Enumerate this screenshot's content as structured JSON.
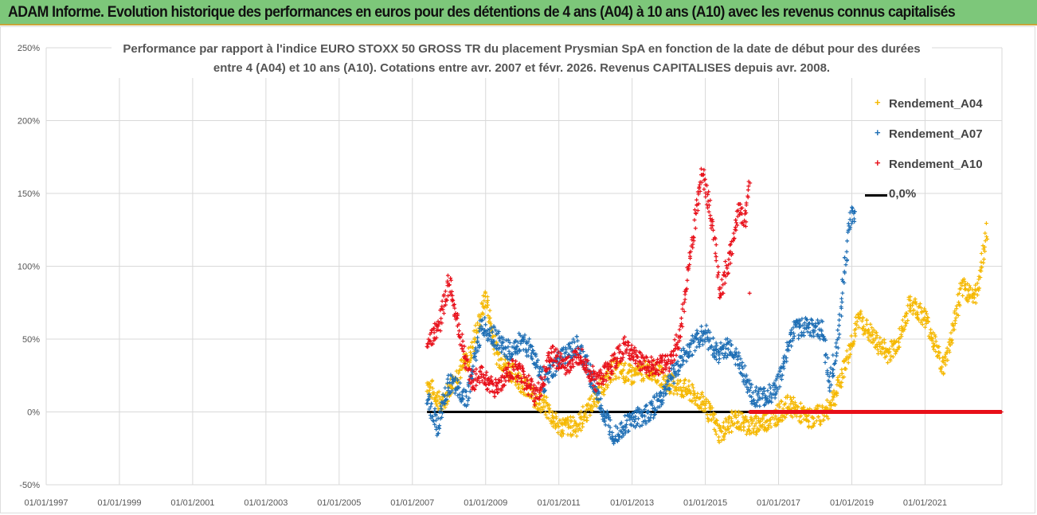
{
  "banner": "ADAM Informe. Evolution historique des performances en euros pour des détentions de 4 ans (A04) à 10 ans (A10) avec les revenus connus capitalisés",
  "colors": {
    "A04": "#f5b800",
    "A07": "#1f6fb5",
    "A10": "#e8101a",
    "zero": "#000000"
  },
  "chart_data": {
    "type": "scatter",
    "title": "Performance par rapport à l'indice EURO STOXX 50 GROSS TR  du placement Prysmian SpA en fonction de la date de début pour des durées",
    "title_line2": "entre 4 (A04) et 10 ans (A10). Cotations entre avr. 2007 et févr. 2026. Revenus CAPITALISES depuis avr. 2008.",
    "xlabel": "",
    "ylabel": "",
    "xlim": [
      1997,
      2023.1
    ],
    "ylim": [
      -50,
      250
    ],
    "y_ticks": [
      "-50%",
      "0%",
      "50%",
      "100%",
      "150%",
      "200%",
      "250%"
    ],
    "y_tick_values": [
      -50,
      0,
      50,
      100,
      150,
      200,
      250
    ],
    "x_ticks": [
      "01/01/1997",
      "01/01/1999",
      "01/01/2001",
      "01/01/2003",
      "01/01/2005",
      "01/01/2007",
      "01/01/2009",
      "01/01/2011",
      "01/01/2013",
      "01/01/2015",
      "01/01/2017",
      "01/01/2019",
      "01/01/2021"
    ],
    "x_tick_values": [
      1997,
      1999,
      2001,
      2003,
      2005,
      2007,
      2009,
      2011,
      2013,
      2015,
      2017,
      2019,
      2021
    ],
    "grid": "vertical and horizontal",
    "legend_position": "top-right",
    "series": [
      {
        "name": "Rendement_A04",
        "key": "A04",
        "points": [
          [
            2007.4,
            20
          ],
          [
            2007.8,
            5
          ],
          [
            2008.2,
            25
          ],
          [
            2008.6,
            40
          ],
          [
            2009.0,
            80
          ],
          [
            2009.3,
            40
          ],
          [
            2009.6,
            30
          ],
          [
            2010.0,
            20
          ],
          [
            2010.3,
            10
          ],
          [
            2010.6,
            5
          ],
          [
            2011.0,
            -10
          ],
          [
            2011.5,
            -10
          ],
          [
            2012.0,
            10
          ],
          [
            2012.5,
            30
          ],
          [
            2013.0,
            25
          ],
          [
            2013.5,
            30
          ],
          [
            2014.0,
            20
          ],
          [
            2014.5,
            15
          ],
          [
            2015.0,
            5
          ],
          [
            2015.4,
            -15
          ],
          [
            2015.8,
            -5
          ],
          [
            2016.3,
            -10
          ],
          [
            2016.8,
            -5
          ],
          [
            2017.3,
            5
          ],
          [
            2017.8,
            -5
          ],
          [
            2018.3,
            0
          ],
          [
            2018.6,
            15
          ],
          [
            2018.9,
            40
          ],
          [
            2019.2,
            65
          ],
          [
            2019.6,
            50
          ],
          [
            2020.0,
            40
          ],
          [
            2020.3,
            50
          ],
          [
            2020.6,
            75
          ],
          [
            2021.0,
            65
          ],
          [
            2021.3,
            45
          ],
          [
            2021.5,
            30
          ],
          [
            2021.7,
            50
          ],
          [
            2022.0,
            85
          ],
          [
            2022.4,
            80
          ],
          [
            2022.7,
            125
          ]
        ]
      },
      {
        "name": "Rendement_A07",
        "key": "A07",
        "points": [
          [
            2007.4,
            10
          ],
          [
            2007.7,
            -10
          ],
          [
            2008.0,
            20
          ],
          [
            2008.5,
            10
          ],
          [
            2008.9,
            60
          ],
          [
            2009.3,
            50
          ],
          [
            2009.7,
            40
          ],
          [
            2010.0,
            50
          ],
          [
            2010.3,
            40
          ],
          [
            2010.6,
            20
          ],
          [
            2011.0,
            35
          ],
          [
            2011.5,
            45
          ],
          [
            2011.8,
            30
          ],
          [
            2012.2,
            0
          ],
          [
            2012.5,
            -15
          ],
          [
            2013.0,
            -5
          ],
          [
            2013.5,
            0
          ],
          [
            2013.8,
            10
          ],
          [
            2014.2,
            30
          ],
          [
            2014.6,
            45
          ],
          [
            2015.0,
            55
          ],
          [
            2015.3,
            40
          ],
          [
            2015.7,
            45
          ],
          [
            2016.0,
            30
          ],
          [
            2016.3,
            10
          ],
          [
            2016.7,
            10
          ],
          [
            2017.0,
            20
          ],
          [
            2017.4,
            55
          ],
          [
            2017.8,
            60
          ],
          [
            2018.2,
            55
          ],
          [
            2018.4,
            20
          ],
          [
            2018.6,
            45
          ],
          [
            2018.8,
            100
          ],
          [
            2019.0,
            140
          ],
          [
            2019.1,
            130
          ]
        ]
      },
      {
        "name": "Rendement_A10",
        "key": "A10",
        "points": [
          [
            2007.4,
            50
          ],
          [
            2007.7,
            55
          ],
          [
            2008.0,
            90
          ],
          [
            2008.3,
            55
          ],
          [
            2008.6,
            20
          ],
          [
            2008.9,
            25
          ],
          [
            2009.3,
            15
          ],
          [
            2009.7,
            30
          ],
          [
            2010.0,
            25
          ],
          [
            2010.4,
            10
          ],
          [
            2010.8,
            40
          ],
          [
            2011.2,
            30
          ],
          [
            2011.6,
            40
          ],
          [
            2012.0,
            20
          ],
          [
            2012.4,
            30
          ],
          [
            2012.8,
            45
          ],
          [
            2013.2,
            35
          ],
          [
            2013.6,
            30
          ],
          [
            2014.0,
            35
          ],
          [
            2014.3,
            50
          ],
          [
            2014.6,
            110
          ],
          [
            2014.9,
            165
          ],
          [
            2015.2,
            130
          ],
          [
            2015.4,
            80
          ],
          [
            2015.7,
            110
          ],
          [
            2015.9,
            140
          ],
          [
            2016.1,
            130
          ],
          [
            2016.2,
            160
          ],
          [
            2016.21,
            0
          ],
          [
            2023.1,
            0
          ]
        ]
      },
      {
        "name": "0,0%",
        "key": "zero",
        "points": [
          [
            2007.4,
            0
          ],
          [
            2023.1,
            0
          ]
        ]
      }
    ]
  }
}
